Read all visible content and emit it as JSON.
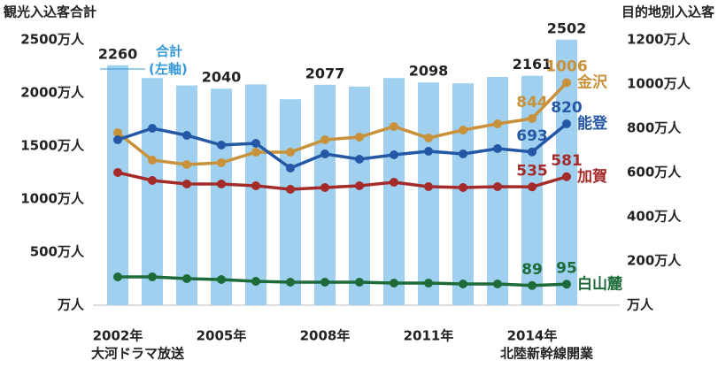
{
  "chart_data": {
    "type": "bar_line",
    "y_title": "観光入込客合計",
    "y2_title": "目的地別入込客",
    "categories": [
      "2002年",
      null,
      null,
      "2005年",
      null,
      null,
      "2008年",
      null,
      null,
      "2011年",
      null,
      null,
      "2014年",
      null
    ],
    "annotations": [
      {
        "index": 0,
        "text": "大河ドラマ放送"
      },
      {
        "index": 13,
        "text": "北陸新幹線開業"
      }
    ],
    "ylim": [
      0,
      2500
    ],
    "yticks": [
      {
        "value": 0,
        "label": "万人"
      },
      {
        "value": 500,
        "label": "500万人"
      },
      {
        "value": 1000,
        "label": "1000万人"
      },
      {
        "value": 1500,
        "label": "1500万人"
      },
      {
        "value": 2000,
        "label": "2000万人"
      },
      {
        "value": 2500,
        "label": "2500万人"
      }
    ],
    "y2lim": [
      0,
      1200
    ],
    "y2ticks": [
      {
        "value": 0,
        "label": "万人"
      },
      {
        "value": 200,
        "label": "200万人"
      },
      {
        "value": 400,
        "label": "400万人"
      },
      {
        "value": 600,
        "label": "600万人"
      },
      {
        "value": 800,
        "label": "800万人"
      },
      {
        "value": 1000,
        "label": "1000万人"
      },
      {
        "value": 1200,
        "label": "1200万人"
      }
    ],
    "series": [
      {
        "name": "合計(左軸)",
        "kind": "bar",
        "color": "#9fd0ef",
        "label_color": "#3a9ad9",
        "values": [
          2260,
          2140,
          2070,
          2040,
          2080,
          1940,
          2077,
          2060,
          2140,
          2098,
          2090,
          2150,
          2161,
          2502
        ],
        "value_labels": [
          "2260",
          null,
          null,
          "2040",
          null,
          null,
          "2077",
          null,
          null,
          "2098",
          null,
          null,
          "2161",
          "2502"
        ]
      },
      {
        "name": "金沢",
        "kind": "line",
        "axis": "y2",
        "color": "#c8913a",
        "values": [
          780,
          656,
          636,
          644,
          692,
          692,
          748,
          760,
          808,
          756,
          792,
          820,
          844,
          1006
        ],
        "value_labels": [
          null,
          null,
          null,
          null,
          null,
          null,
          null,
          null,
          null,
          null,
          null,
          null,
          "844",
          "1006"
        ]
      },
      {
        "name": "能登",
        "kind": "line",
        "axis": "y2",
        "color": "#2457a6",
        "values": [
          748,
          800,
          768,
          724,
          732,
          620,
          684,
          660,
          680,
          696,
          684,
          708,
          693,
          820
        ],
        "value_labels": [
          null,
          null,
          null,
          null,
          null,
          null,
          null,
          null,
          null,
          null,
          null,
          null,
          "693",
          "820"
        ]
      },
      {
        "name": "加賀",
        "kind": "line",
        "axis": "y2",
        "color": "#a52a2a",
        "values": [
          600,
          564,
          548,
          548,
          540,
          524,
          532,
          540,
          556,
          536,
          532,
          536,
          535,
          581
        ],
        "value_labels": [
          null,
          null,
          null,
          null,
          null,
          null,
          null,
          null,
          null,
          null,
          null,
          null,
          "535",
          "581"
        ]
      },
      {
        "name": "白山麓",
        "kind": "line",
        "axis": "y2",
        "color": "#1e6b3a",
        "values": [
          128,
          128,
          120,
          116,
          108,
          104,
          104,
          104,
          100,
          100,
          96,
          96,
          89,
          95
        ],
        "value_labels": [
          null,
          null,
          null,
          null,
          null,
          null,
          null,
          null,
          null,
          null,
          null,
          null,
          "89",
          "95"
        ]
      }
    ]
  }
}
